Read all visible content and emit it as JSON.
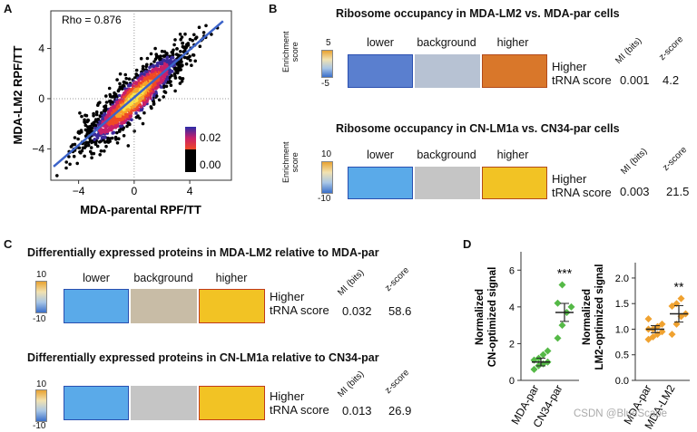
{
  "panels": {
    "A": {
      "letter": "A",
      "rho": "Rho = 0.876",
      "xlabel": "MDA-parental RPF/TT",
      "ylabel": "MDA-LM2 RPF/TT",
      "xticks": [
        "−4",
        "0",
        "4"
      ],
      "yticks": [
        "4",
        "0",
        "−4"
      ],
      "legend": [
        "0.02",
        "0.00"
      ]
    },
    "B": {
      "letter": "B",
      "title1": "Ribosome occupancy in MDA-LM2 vs. MDA-par cells",
      "title2": "Ribosome occupancy in CN-LM1a vs. CN34-par cells",
      "enrich": "Enrichment\nscore",
      "scale1": [
        "5",
        "-5"
      ],
      "scale2": [
        "10",
        "-10"
      ]
    },
    "C": {
      "letter": "C",
      "title1": "Differentially expressed proteins in MDA-LM2 relative to MDA-par",
      "title2": "Differentially expressed proteins in CN-LM1a relative to CN34-par",
      "scale": [
        "10",
        "-10"
      ]
    },
    "D": {
      "letter": "D",
      "y1": "Normalized\nCN-optimized signal",
      "y2": "Normalized\nLM2-optimized signal",
      "x1": [
        "MDA-par",
        "CN34-par"
      ],
      "x2": [
        "MDA-par",
        "MDA-LM2"
      ],
      "sig1": "***",
      "sig2": "**",
      "yticks1": [
        "6",
        "4",
        "2",
        "0"
      ],
      "yticks2": [
        "2.0",
        "1.5",
        "1.0",
        "0.5",
        "0.0"
      ]
    }
  },
  "common": {
    "lower": "lower",
    "background": "background",
    "higher": "higher",
    "higher_trna": "Higher\ntRNA score",
    "mi_label": "MI (bits)",
    "z_label": "z-score",
    "enrichment": "Enrichment\nscore"
  },
  "stats": {
    "B1": {
      "mi": "0.001",
      "z": "4.2"
    },
    "B2": {
      "mi": "0.003",
      "z": "21.5"
    },
    "C1": {
      "mi": "0.032",
      "z": "58.6"
    },
    "C2": {
      "mi": "0.013",
      "z": "26.9"
    }
  },
  "colors": {
    "b1": [
      "#5a7fcf",
      "#b7c2d3",
      "#d9772a"
    ],
    "b2": [
      "#5aaae9",
      "#c5c5c5",
      "#f2c324"
    ],
    "c1": [
      "#5aaae9",
      "#c8bca6",
      "#f2c324"
    ],
    "c2": [
      "#5aaae9",
      "#c5c5c5",
      "#f2c324"
    ]
  },
  "watermark": "CSDN @BlueScape",
  "chart_data": [
    {
      "type": "scatter",
      "title": "",
      "xlabel": "MDA-parental RPF/TT",
      "ylabel": "MDA-LM2 RPF/TT",
      "xlim": [
        -6,
        7
      ],
      "ylim": [
        -6.5,
        7
      ],
      "annotation": "Rho = 0.876",
      "trend": {
        "slope": 0.95,
        "intercept": 0.1
      },
      "density_legend": [
        "0.02",
        "0.00"
      ]
    },
    {
      "type": "scatter",
      "xlabel": "",
      "ylabel": "Normalized CN-optimized signal",
      "ylim": [
        0,
        7
      ],
      "categories": [
        "MDA-par",
        "CN34-par"
      ],
      "series": [
        {
          "name": "MDA-par",
          "values": [
            0.6,
            0.8,
            0.9,
            1.0,
            1.1,
            1.2,
            1.4,
            1.6
          ]
        },
        {
          "name": "CN34-par",
          "values": [
            2.3,
            3.0,
            3.7,
            4.0,
            4.2,
            5.2
          ]
        }
      ],
      "means": [
        1.0,
        3.7
      ],
      "significance": "***"
    },
    {
      "type": "scatter",
      "xlabel": "",
      "ylabel": "Normalized LM2-optimized signal",
      "ylim": [
        0,
        2.3
      ],
      "categories": [
        "MDA-par",
        "MDA-LM2"
      ],
      "series": [
        {
          "name": "MDA-par",
          "values": [
            0.8,
            0.85,
            0.9,
            0.95,
            1.0,
            1.0,
            1.05,
            1.1,
            1.2
          ]
        },
        {
          "name": "MDA-LM2",
          "values": [
            0.9,
            1.1,
            1.25,
            1.3,
            1.45,
            1.5,
            1.6
          ]
        }
      ],
      "means": [
        1.0,
        1.3
      ],
      "significance": "**"
    }
  ]
}
